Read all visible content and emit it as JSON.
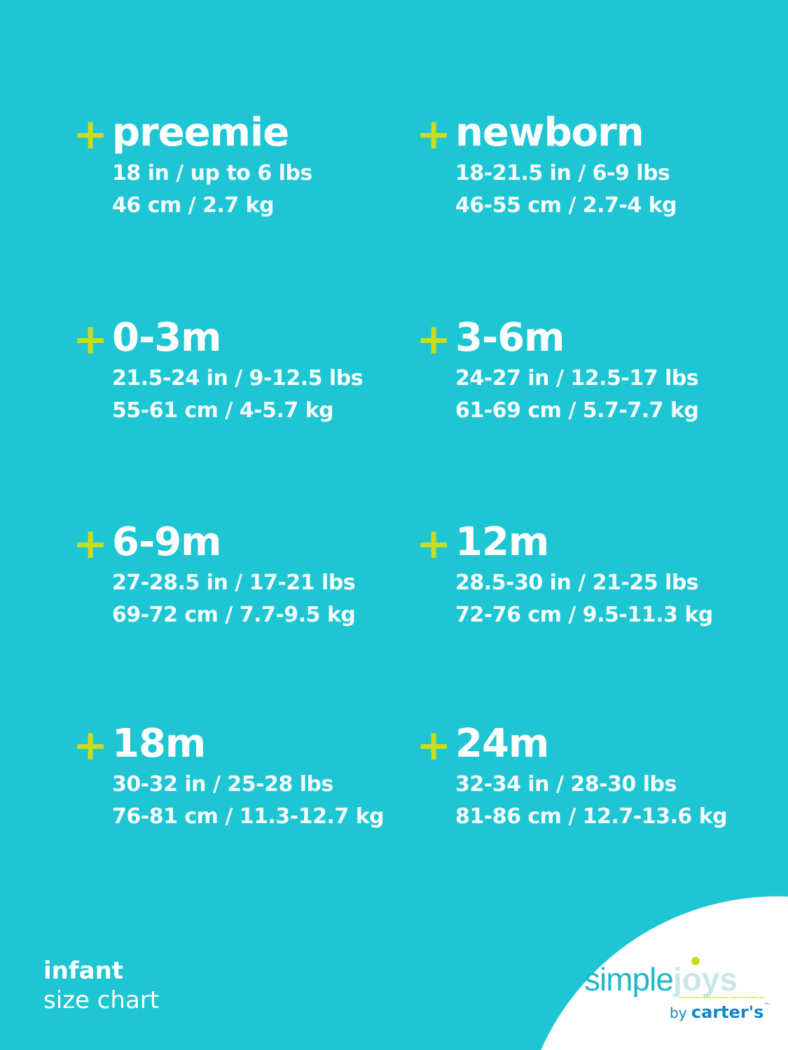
{
  "sizes": [
    {
      "title": "preemie",
      "line1": "18 in / up to 6 lbs",
      "line2": "46 cm / 2.7 kg"
    },
    {
      "title": "newborn",
      "line1": "18-21.5 in / 6-9 lbs",
      "line2": "46-55 cm / 2.7-4 kg"
    },
    {
      "title": "0-3m",
      "line1": "21.5-24 in / 9-12.5 lbs",
      "line2": "55-61 cm / 4-5.7 kg"
    },
    {
      "title": "3-6m",
      "line1": "24-27 in / 12.5-17 lbs",
      "line2": "61-69 cm / 5.7-7.7 kg"
    },
    {
      "title": "6-9m",
      "line1": "27-28.5 in / 17-21 lbs",
      "line2": "69-72 cm / 7.7-9.5 kg"
    },
    {
      "title": "12m",
      "line1": "28.5-30 in / 21-25 lbs",
      "line2": "72-76 cm / 9.5-11.3 kg"
    },
    {
      "title": "18m",
      "line1": "30-32 in / 25-28 lbs",
      "line2": "76-81 cm / 11.3-12.7 kg"
    },
    {
      "title": "24m",
      "line1": "32-34 in / 28-30 lbs",
      "line2": "81-86 cm / 12.7-13.6 kg"
    }
  ],
  "plus_symbol": "+",
  "footer": {
    "line1": "infant",
    "line2": "size chart"
  },
  "logo": {
    "simple": "simple",
    "joys": "joys",
    "by": "by",
    "carters": "carter's",
    "tm": "™"
  },
  "colors": {
    "background": "#1ec5d3",
    "accent": "#c9dc1f",
    "text": "#ffffff"
  }
}
